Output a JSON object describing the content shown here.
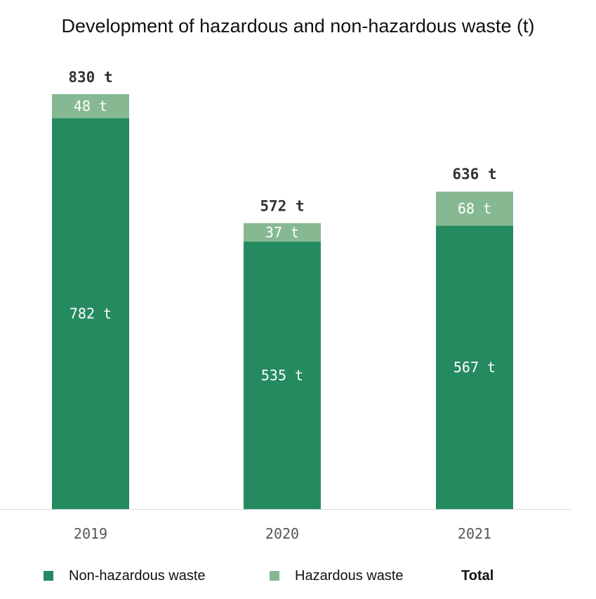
{
  "chart_data": {
    "type": "bar",
    "stacked": true,
    "title": "Development of hazardous and non-hazardous waste (t)",
    "categories": [
      "2019",
      "2020",
      "2021"
    ],
    "series": [
      {
        "name": "Non-hazardous waste",
        "color": "#268a60",
        "values": [
          782,
          535,
          567
        ],
        "labels": [
          "782 t",
          "535 t",
          "567 t"
        ]
      },
      {
        "name": "Hazardous waste",
        "color": "#86b992",
        "values": [
          48,
          37,
          68
        ],
        "labels": [
          "48 t",
          "37 t",
          "68 t"
        ]
      }
    ],
    "totals": [
      830,
      572,
      636
    ],
    "total_labels": [
      "830 t",
      "572 t",
      "636 t"
    ],
    "total_legend": "Total",
    "ylim": [
      0,
      830
    ],
    "grid": false,
    "legend_position": "bottom"
  }
}
